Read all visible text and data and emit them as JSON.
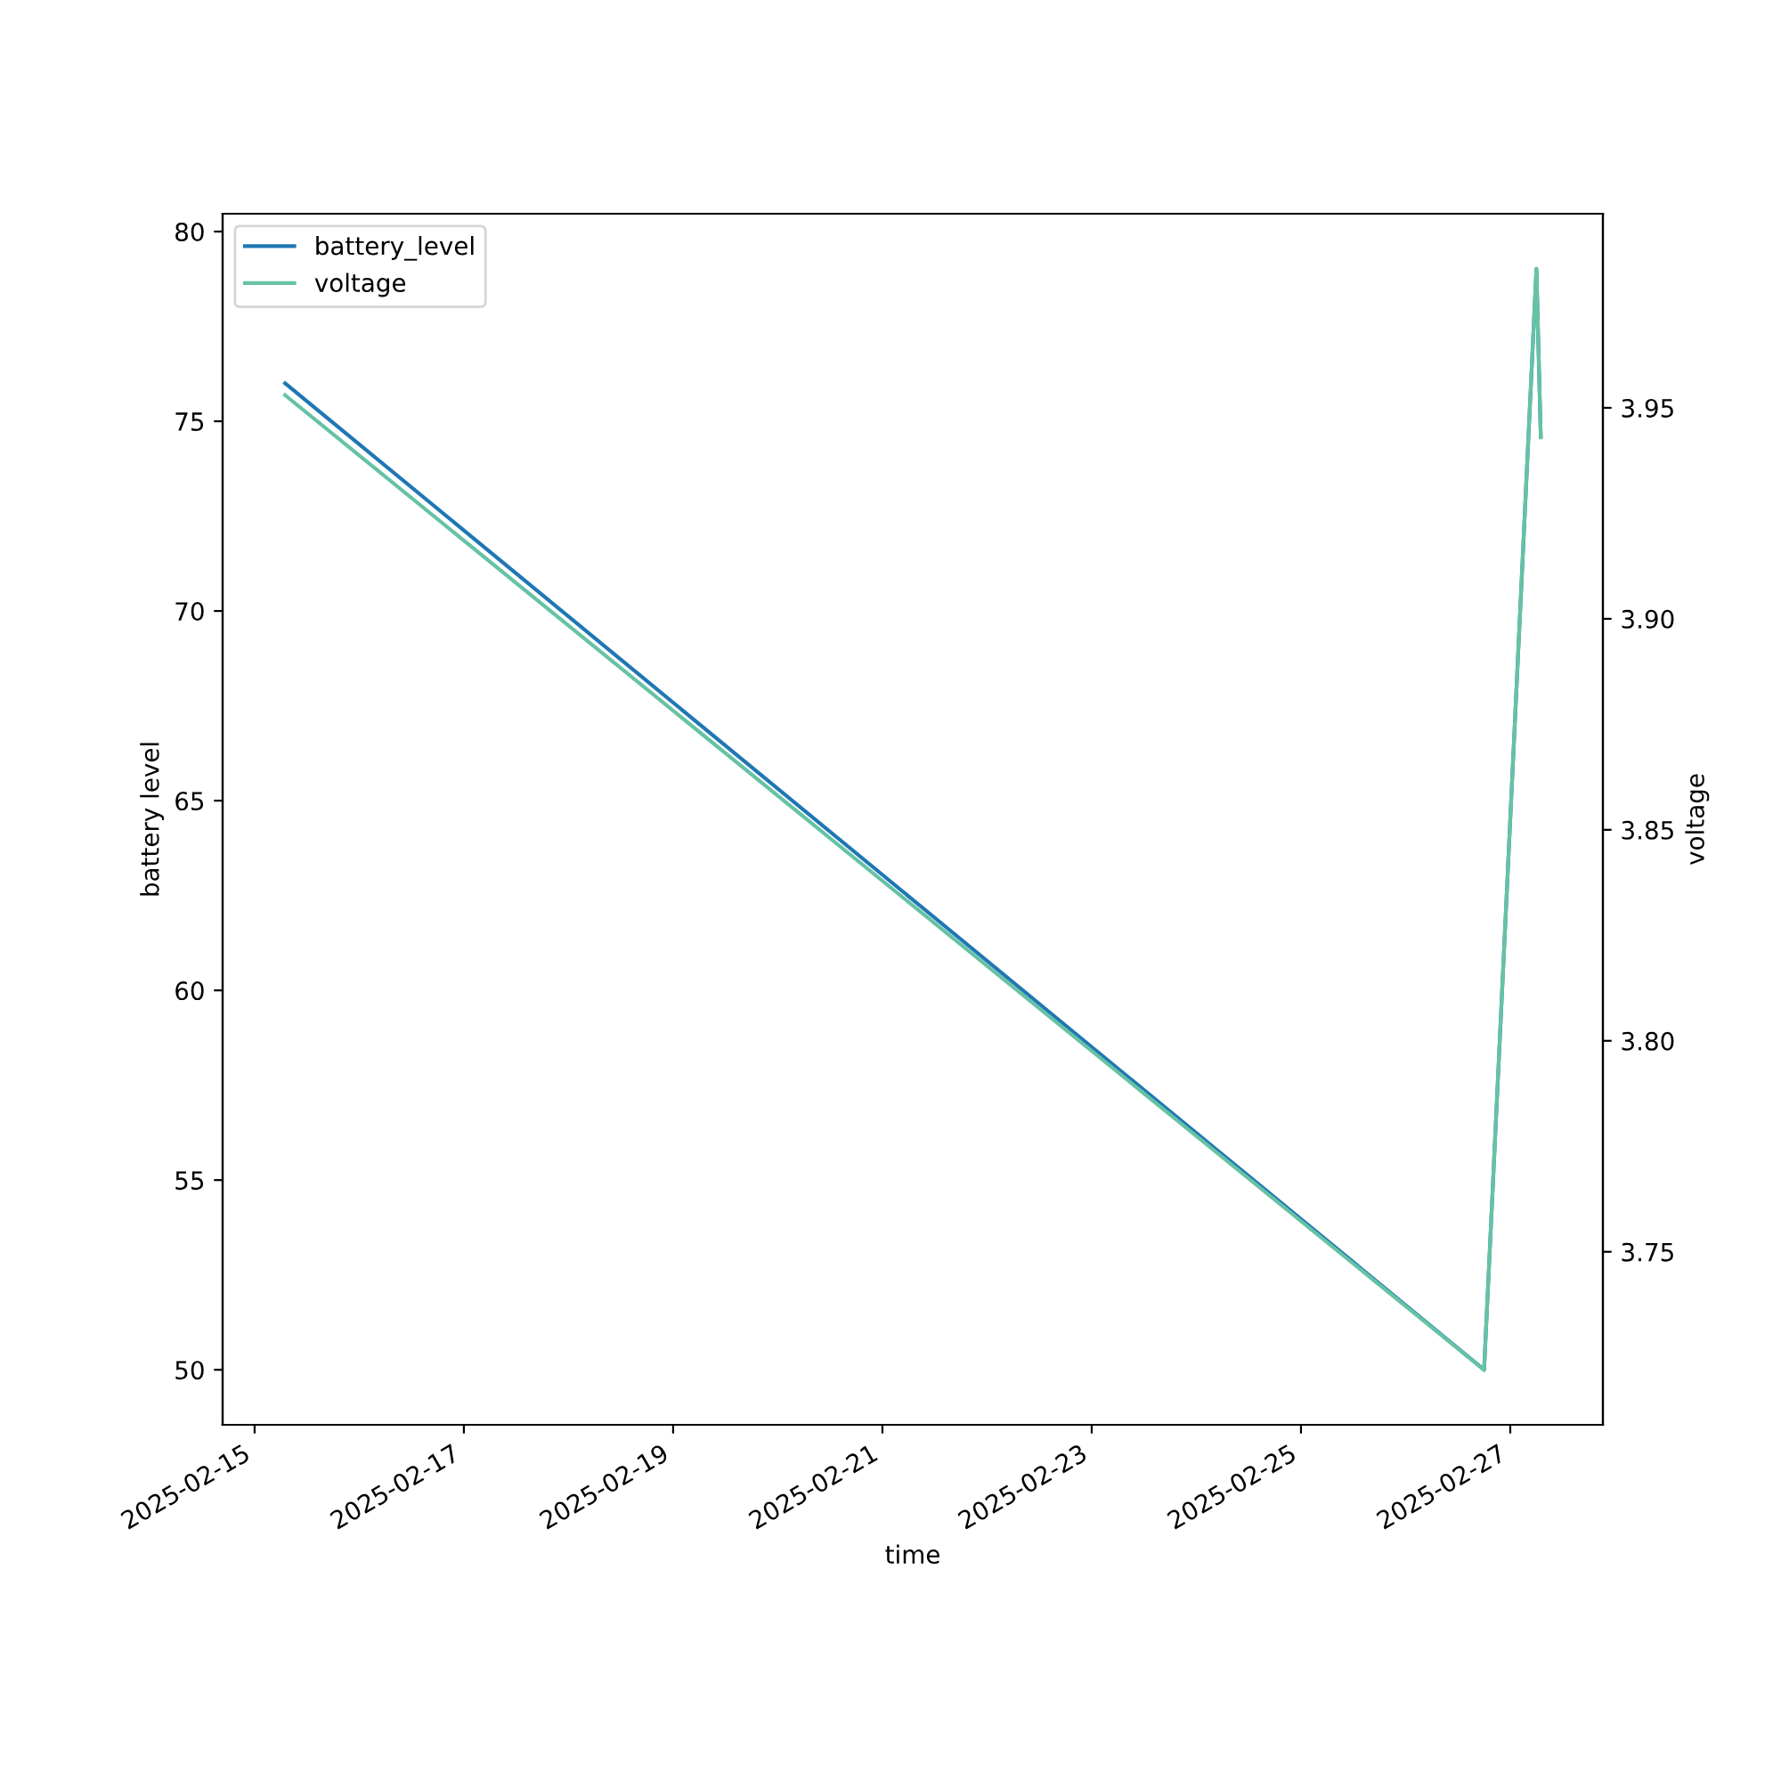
{
  "chart_data": {
    "type": "line",
    "xlabel": "time",
    "ylabel": "battery level",
    "y2label": "voltage",
    "x": [
      "2025-02-15T07:00",
      "2025-02-26T18:00",
      "2025-02-27T06:00",
      "2025-02-27T07:00"
    ],
    "series": [
      {
        "name": "battery_level",
        "color": "#1f77b4",
        "values": [
          76,
          50,
          79,
          74.6
        ]
      },
      {
        "name": "voltage",
        "color": "#66c2a5",
        "axis": "y2",
        "values": [
          3.953,
          3.722,
          3.983,
          3.943
        ]
      }
    ],
    "xlim": [
      "2025-02-14T16:40",
      "2025-02-27T21:15"
    ],
    "xticks": [
      "2025-02-15",
      "2025-02-17",
      "2025-02-19",
      "2025-02-21",
      "2025-02-23",
      "2025-02-25",
      "2025-02-27"
    ],
    "ylim": [
      48.55,
      80.47
    ],
    "yticks": [
      50,
      55,
      60,
      65,
      70,
      75,
      80
    ],
    "y2lim": [
      3.709,
      3.996
    ],
    "y2ticks": [
      3.75,
      {
        "value": 3.8,
        "label": "3.80"
      },
      3.85,
      {
        "value": 3.9,
        "label": "3.90"
      },
      3.95
    ],
    "legend": "top left",
    "grid": false
  }
}
